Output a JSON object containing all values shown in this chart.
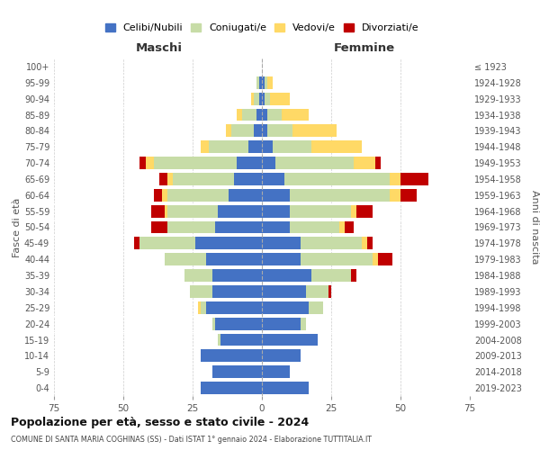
{
  "age_groups": [
    "0-4",
    "5-9",
    "10-14",
    "15-19",
    "20-24",
    "25-29",
    "30-34",
    "35-39",
    "40-44",
    "45-49",
    "50-54",
    "55-59",
    "60-64",
    "65-69",
    "70-74",
    "75-79",
    "80-84",
    "85-89",
    "90-94",
    "95-99",
    "100+"
  ],
  "birth_years": [
    "2019-2023",
    "2014-2018",
    "2009-2013",
    "2004-2008",
    "1999-2003",
    "1994-1998",
    "1989-1993",
    "1984-1988",
    "1979-1983",
    "1974-1978",
    "1969-1973",
    "1964-1968",
    "1959-1963",
    "1954-1958",
    "1949-1953",
    "1944-1948",
    "1939-1943",
    "1934-1938",
    "1929-1933",
    "1924-1928",
    "≤ 1923"
  ],
  "maschi": {
    "celibi": [
      22,
      18,
      22,
      15,
      17,
      20,
      18,
      18,
      20,
      24,
      17,
      16,
      12,
      10,
      9,
      5,
      3,
      2,
      1,
      1,
      0
    ],
    "coniugati": [
      0,
      0,
      0,
      1,
      1,
      2,
      8,
      10,
      15,
      20,
      17,
      18,
      22,
      22,
      30,
      14,
      8,
      5,
      2,
      1,
      0
    ],
    "vedovi": [
      0,
      0,
      0,
      0,
      0,
      1,
      0,
      0,
      0,
      0,
      0,
      1,
      2,
      2,
      3,
      3,
      2,
      2,
      1,
      0,
      0
    ],
    "divorziati": [
      0,
      0,
      0,
      0,
      0,
      0,
      0,
      0,
      0,
      2,
      6,
      5,
      3,
      3,
      2,
      0,
      0,
      0,
      0,
      0,
      0
    ]
  },
  "femmine": {
    "nubili": [
      17,
      10,
      14,
      20,
      14,
      17,
      16,
      18,
      14,
      14,
      10,
      10,
      10,
      8,
      5,
      4,
      2,
      2,
      1,
      1,
      0
    ],
    "coniugate": [
      0,
      0,
      0,
      0,
      2,
      5,
      8,
      14,
      26,
      22,
      18,
      22,
      36,
      38,
      28,
      14,
      9,
      5,
      2,
      1,
      0
    ],
    "vedove": [
      0,
      0,
      0,
      0,
      0,
      0,
      0,
      0,
      2,
      2,
      2,
      2,
      4,
      4,
      8,
      18,
      16,
      10,
      7,
      2,
      0
    ],
    "divorziate": [
      0,
      0,
      0,
      0,
      0,
      0,
      1,
      2,
      5,
      2,
      3,
      6,
      6,
      10,
      2,
      0,
      0,
      0,
      0,
      0,
      0
    ]
  },
  "colors": {
    "celibi": "#4472C4",
    "coniugati": "#C7DCA7",
    "vedovi": "#FFD966",
    "divorziati": "#C00000"
  },
  "xlim": 75,
  "title": "Popolazione per età, sesso e stato civile - 2024",
  "subtitle": "COMUNE DI SANTA MARIA COGHINAS (SS) - Dati ISTAT 1° gennaio 2024 - Elaborazione TUTTITALIA.IT",
  "ylabel_left": "Fasce di età",
  "ylabel_right": "Anni di nascita",
  "xlabel_maschi": "Maschi",
  "xlabel_femmine": "Femmine",
  "legend_labels": [
    "Celibi/Nubili",
    "Coniugati/e",
    "Vedovi/e",
    "Divorziati/e"
  ],
  "background_color": "#ffffff"
}
